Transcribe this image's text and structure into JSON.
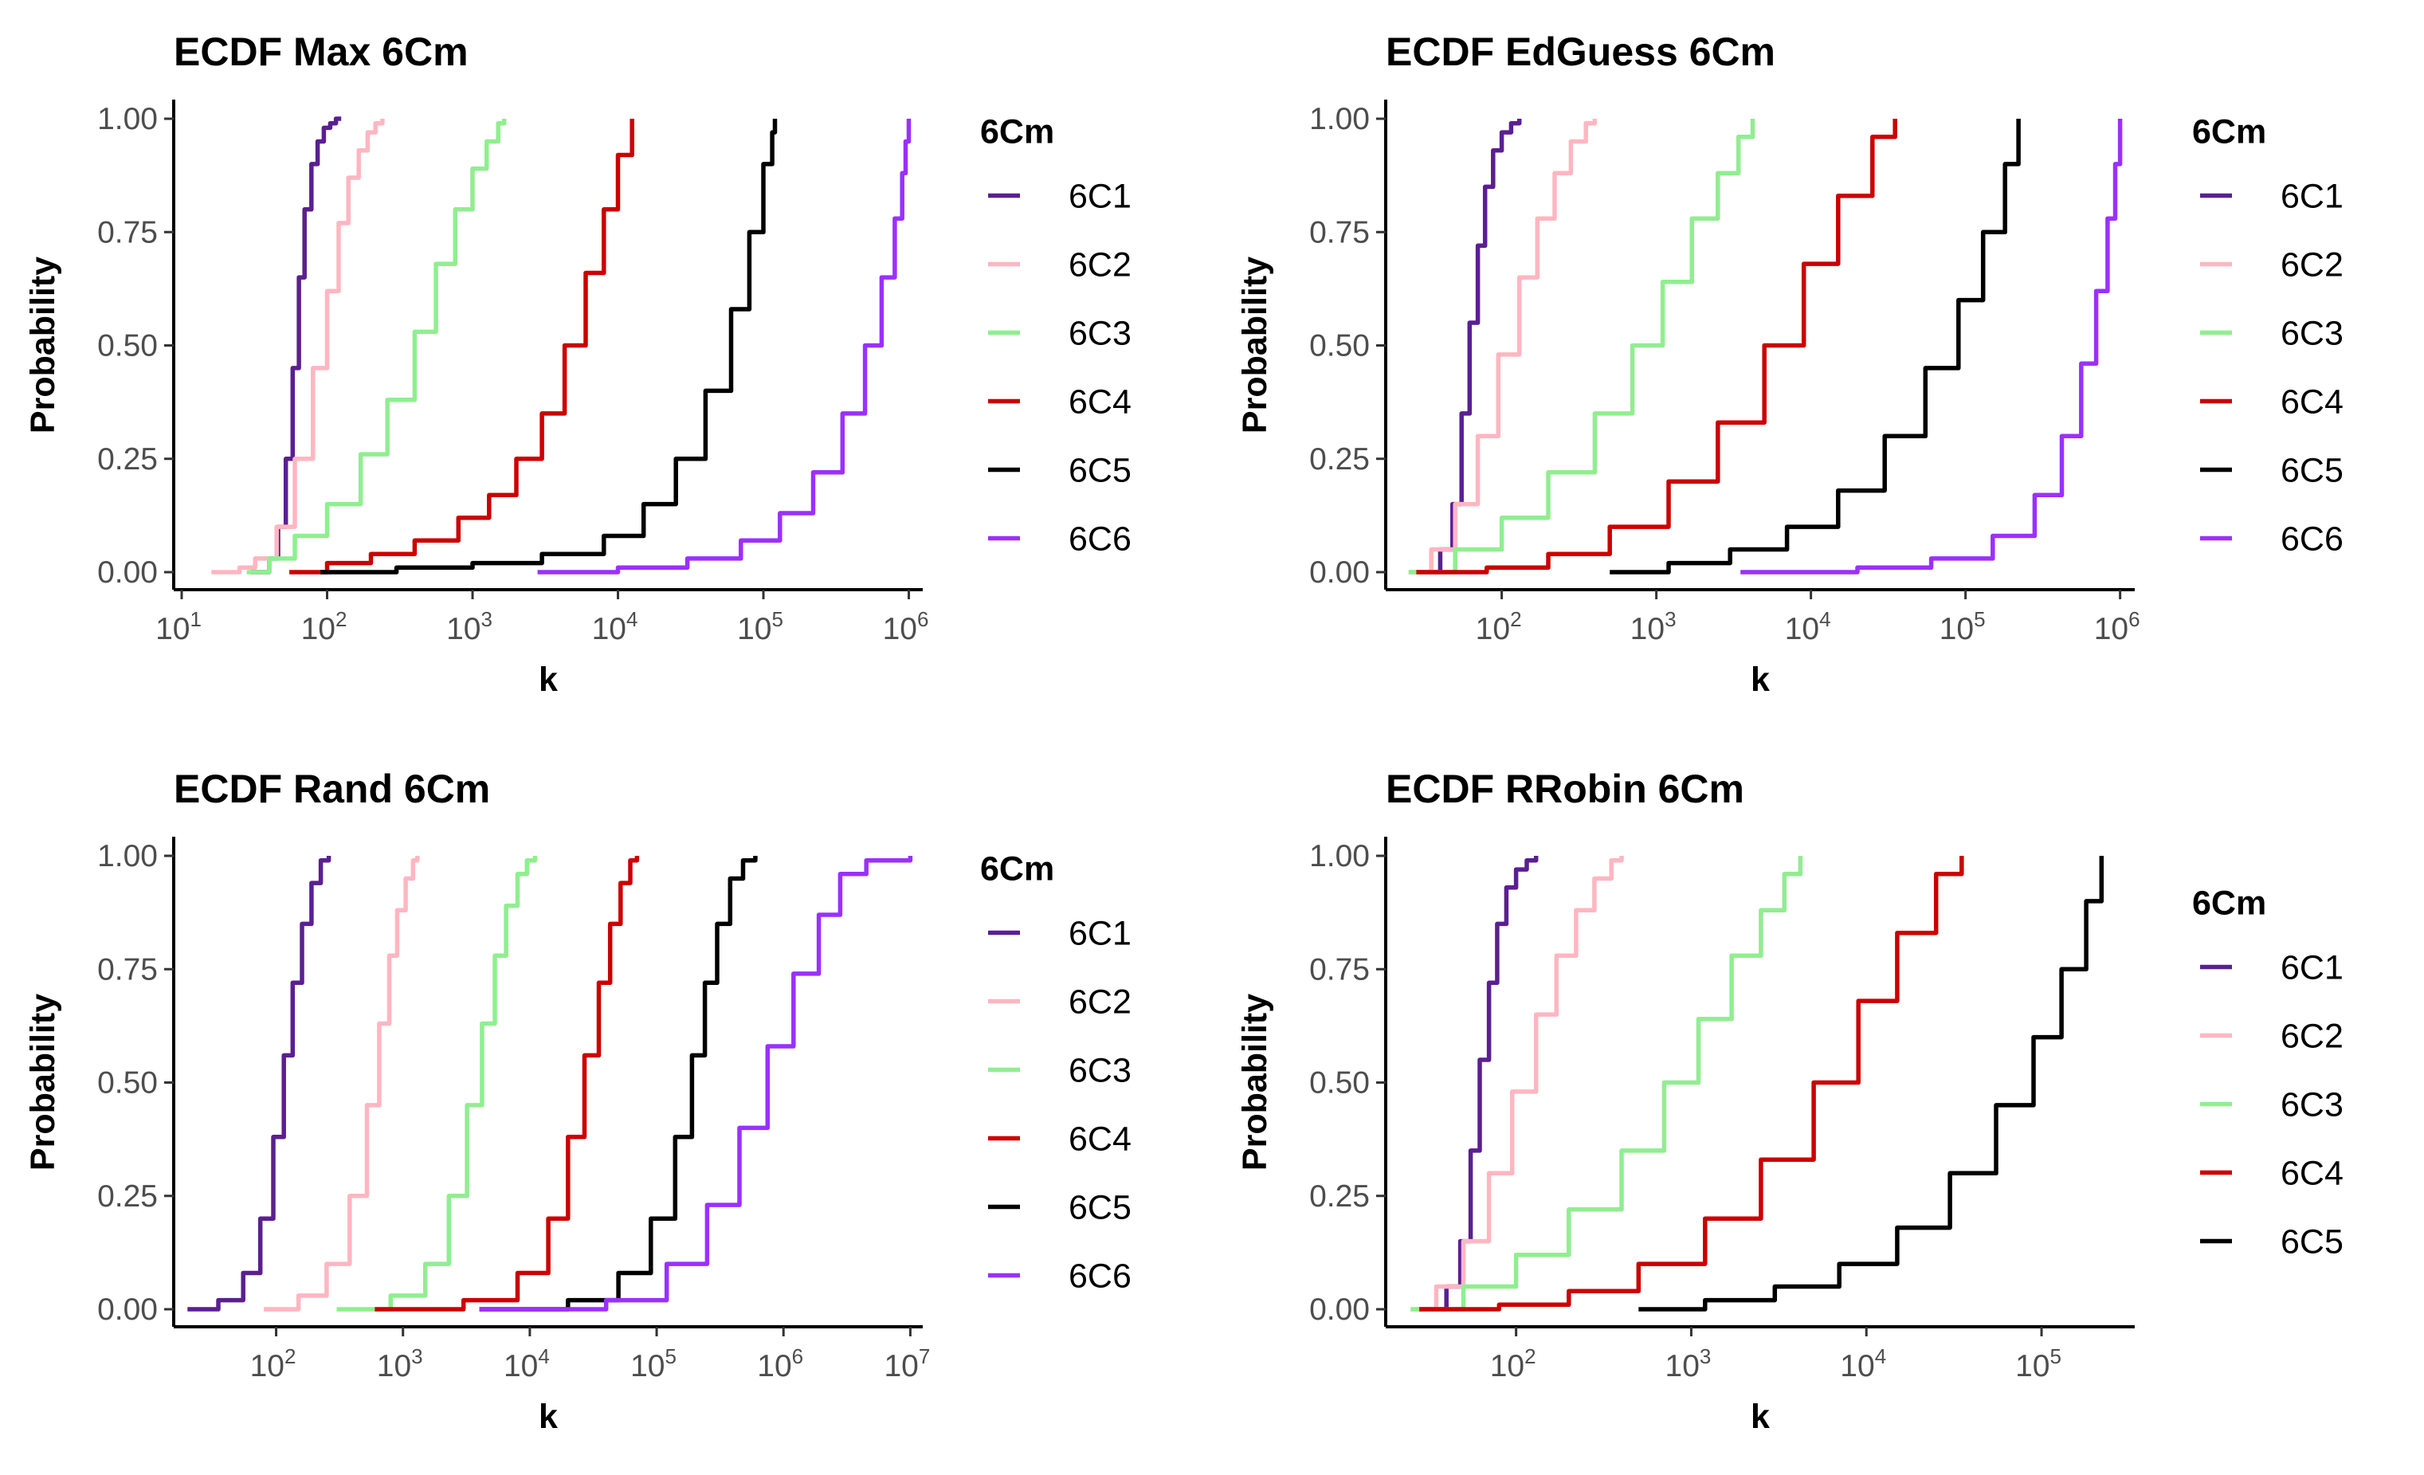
{
  "chart_data": [
    {
      "type": "line",
      "title": "ECDF Max 6Cm",
      "xlabel": "k",
      "ylabel": "Probability",
      "xscale": "log10",
      "xlim": [
        10,
        1200000
      ],
      "ylim": [
        0,
        1
      ],
      "x_ticks": [
        1,
        2,
        3,
        4,
        5,
        6
      ],
      "y_ticks": [
        "0.00",
        "0.25",
        "0.50",
        "0.75",
        "1.00"
      ],
      "legend": {
        "title": "6Cm",
        "position": "right"
      },
      "series": [
        {
          "name": "6C1",
          "color": "#5b1f91",
          "x": [
            30,
            40,
            46,
            52,
            58,
            64,
            70,
            78,
            86,
            95,
            105,
            115,
            125
          ],
          "y": [
            0,
            0.03,
            0.1,
            0.25,
            0.45,
            0.65,
            0.8,
            0.9,
            0.95,
            0.98,
            0.99,
            1.0,
            1.0
          ]
        },
        {
          "name": "6C2",
          "color": "#ffb6c1",
          "x": [
            16,
            25,
            32,
            45,
            60,
            80,
            100,
            120,
            140,
            165,
            190,
            215,
            240
          ],
          "y": [
            0,
            0.01,
            0.03,
            0.1,
            0.25,
            0.45,
            0.62,
            0.77,
            0.87,
            0.93,
            0.97,
            0.99,
            1.0
          ]
        },
        {
          "name": "6C3",
          "color": "#90ee90",
          "x": [
            28,
            40,
            60,
            100,
            170,
            260,
            400,
            560,
            760,
            1000,
            1250,
            1500,
            1650
          ],
          "y": [
            0,
            0.03,
            0.08,
            0.15,
            0.26,
            0.38,
            0.53,
            0.68,
            0.8,
            0.89,
            0.95,
            0.99,
            1.0
          ]
        },
        {
          "name": "6C4",
          "color": "#cc0000",
          "x": [
            55,
            100,
            200,
            400,
            800,
            1300,
            2000,
            3000,
            4300,
            6000,
            8000,
            10000,
            12500
          ],
          "y": [
            0,
            0.02,
            0.04,
            0.07,
            0.12,
            0.17,
            0.25,
            0.35,
            0.5,
            0.66,
            0.8,
            0.92,
            1.0
          ]
        },
        {
          "name": "6C5",
          "color": "#000000",
          "x": [
            90,
            300,
            1000,
            3000,
            8000,
            15000,
            25000,
            40000,
            60000,
            80000,
            100000,
            115000,
            120000
          ],
          "y": [
            0,
            0.01,
            0.02,
            0.04,
            0.08,
            0.15,
            0.25,
            0.4,
            0.58,
            0.75,
            0.9,
            0.97,
            1.0
          ]
        },
        {
          "name": "6C6",
          "color": "#9b30ff",
          "x": [
            2800,
            10000,
            30000,
            70000,
            130000,
            220000,
            350000,
            500000,
            650000,
            800000,
            900000,
            950000,
            1000000
          ],
          "y": [
            0,
            0.01,
            0.03,
            0.07,
            0.13,
            0.22,
            0.35,
            0.5,
            0.65,
            0.78,
            0.88,
            0.95,
            1.0
          ]
        }
      ]
    },
    {
      "type": "line",
      "title": "ECDF EdGuess 6Cm",
      "xlabel": "k",
      "ylabel": "Probability",
      "xscale": "log10",
      "xlim": [
        20,
        1200000
      ],
      "ylim": [
        0,
        1
      ],
      "x_ticks": [
        2,
        3,
        4,
        5,
        6
      ],
      "y_ticks": [
        "0.00",
        "0.25",
        "0.50",
        "0.75",
        "1.00"
      ],
      "legend": {
        "title": "6Cm",
        "position": "right"
      },
      "series": [
        {
          "name": "6C1",
          "color": "#5b1f91",
          "x": [
            28,
            40,
            48,
            55,
            62,
            70,
            78,
            88,
            100,
            115,
            130
          ],
          "y": [
            0,
            0.05,
            0.15,
            0.35,
            0.55,
            0.72,
            0.85,
            0.93,
            0.97,
            0.99,
            1.0
          ]
        },
        {
          "name": "6C2",
          "color": "#ffb6c1",
          "x": [
            25,
            35,
            50,
            70,
            95,
            130,
            170,
            220,
            280,
            350,
            400
          ],
          "y": [
            0,
            0.05,
            0.15,
            0.3,
            0.48,
            0.65,
            0.78,
            0.88,
            0.95,
            0.99,
            1.0
          ]
        },
        {
          "name": "6C3",
          "color": "#90ee90",
          "x": [
            25,
            50,
            100,
            200,
            400,
            700,
            1100,
            1700,
            2500,
            3400,
            4200
          ],
          "y": [
            0,
            0.05,
            0.12,
            0.22,
            0.35,
            0.5,
            0.64,
            0.78,
            0.88,
            0.96,
            1.0
          ]
        },
        {
          "name": "6C4",
          "color": "#cc0000",
          "x": [
            28,
            80,
            200,
            500,
            1200,
            2500,
            5000,
            9000,
            15000,
            25000,
            35000
          ],
          "y": [
            0,
            0.01,
            0.04,
            0.1,
            0.2,
            0.33,
            0.5,
            0.68,
            0.83,
            0.96,
            1.0
          ]
        },
        {
          "name": "6C5",
          "color": "#000000",
          "x": [
            500,
            1200,
            3000,
            7000,
            15000,
            30000,
            55000,
            90000,
            130000,
            180000,
            220000
          ],
          "y": [
            0,
            0.02,
            0.05,
            0.1,
            0.18,
            0.3,
            0.45,
            0.6,
            0.75,
            0.9,
            1.0
          ]
        },
        {
          "name": "6C6",
          "color": "#9b30ff",
          "x": [
            3500,
            20000,
            60000,
            150000,
            280000,
            420000,
            560000,
            700000,
            830000,
            930000,
            1000000
          ],
          "y": [
            0,
            0.01,
            0.03,
            0.08,
            0.17,
            0.3,
            0.46,
            0.62,
            0.78,
            0.9,
            1.0
          ]
        }
      ]
    },
    {
      "type": "line",
      "title": "ECDF Rand 6Cm",
      "xlabel": "k",
      "ylabel": "Probability",
      "xscale": "log10",
      "xlim": [
        18,
        12000000
      ],
      "ylim": [
        0,
        1
      ],
      "x_ticks": [
        2,
        3,
        4,
        5,
        6,
        7
      ],
      "y_ticks": [
        "0.00",
        "0.25",
        "0.50",
        "0.75",
        "1.00"
      ],
      "legend": {
        "title": "6Cm",
        "position": "right"
      },
      "series": [
        {
          "name": "6C1",
          "color": "#5b1f91",
          "x": [
            20,
            35,
            55,
            75,
            95,
            115,
            135,
            160,
            190,
            225,
            260
          ],
          "y": [
            0,
            0.02,
            0.08,
            0.2,
            0.38,
            0.56,
            0.72,
            0.85,
            0.94,
            0.99,
            1.0
          ]
        },
        {
          "name": "6C2",
          "color": "#ffb6c1",
          "x": [
            80,
            150,
            250,
            380,
            520,
            650,
            780,
            900,
            1050,
            1200,
            1300
          ],
          "y": [
            0,
            0.03,
            0.1,
            0.25,
            0.45,
            0.63,
            0.78,
            0.88,
            0.95,
            0.99,
            1.0
          ]
        },
        {
          "name": "6C3",
          "color": "#90ee90",
          "x": [
            300,
            800,
            1500,
            2300,
            3200,
            4200,
            5300,
            6500,
            8000,
            9500,
            11000
          ],
          "y": [
            0,
            0.03,
            0.1,
            0.25,
            0.45,
            0.63,
            0.78,
            0.89,
            0.96,
            0.99,
            1.0
          ]
        },
        {
          "name": "6C4",
          "color": "#cc0000",
          "x": [
            600,
            3000,
            8000,
            14000,
            20000,
            27000,
            35000,
            43000,
            52000,
            62000,
            70000
          ],
          "y": [
            0,
            0.02,
            0.08,
            0.2,
            0.38,
            0.56,
            0.72,
            0.85,
            0.94,
            0.99,
            1.0
          ]
        },
        {
          "name": "6C5",
          "color": "#000000",
          "x": [
            4000,
            20000,
            50000,
            90000,
            140000,
            190000,
            240000,
            300000,
            380000,
            480000,
            600000
          ],
          "y": [
            0,
            0.02,
            0.08,
            0.2,
            0.38,
            0.56,
            0.72,
            0.85,
            0.95,
            0.99,
            1.0
          ]
        },
        {
          "name": "6C6",
          "color": "#9b30ff",
          "x": [
            4000,
            40000,
            120000,
            250000,
            450000,
            750000,
            1200000,
            1900000,
            2800000,
            4500000,
            10000000
          ],
          "y": [
            0,
            0.02,
            0.1,
            0.23,
            0.4,
            0.58,
            0.74,
            0.87,
            0.96,
            0.99,
            1.0
          ]
        }
      ]
    },
    {
      "type": "line",
      "title": "ECDF RRobin 6Cm",
      "xlabel": "k",
      "ylabel": "Probability",
      "xscale": "log10",
      "xlim": [
        20,
        330000
      ],
      "ylim": [
        0,
        1
      ],
      "x_ticks": [
        2,
        3,
        4,
        5
      ],
      "y_ticks": [
        "0.00",
        "0.25",
        "0.50",
        "0.75",
        "1.00"
      ],
      "legend": {
        "title": "6Cm",
        "position": "right"
      },
      "series": [
        {
          "name": "6C1",
          "color": "#5b1f91",
          "x": [
            28,
            40,
            48,
            55,
            62,
            70,
            78,
            88,
            100,
            115,
            130
          ],
          "y": [
            0,
            0.05,
            0.15,
            0.35,
            0.55,
            0.72,
            0.85,
            0.93,
            0.97,
            0.99,
            1.0
          ]
        },
        {
          "name": "6C2",
          "color": "#ffb6c1",
          "x": [
            25,
            35,
            50,
            70,
            95,
            130,
            170,
            220,
            280,
            350,
            400
          ],
          "y": [
            0,
            0.05,
            0.15,
            0.3,
            0.48,
            0.65,
            0.78,
            0.88,
            0.95,
            0.99,
            1.0
          ]
        },
        {
          "name": "6C3",
          "color": "#90ee90",
          "x": [
            25,
            50,
            100,
            200,
            400,
            700,
            1100,
            1700,
            2500,
            3400,
            4200
          ],
          "y": [
            0,
            0.05,
            0.12,
            0.22,
            0.35,
            0.5,
            0.64,
            0.78,
            0.88,
            0.96,
            1.0
          ]
        },
        {
          "name": "6C4",
          "color": "#cc0000",
          "x": [
            28,
            80,
            200,
            500,
            1200,
            2500,
            5000,
            9000,
            15000,
            25000,
            35000
          ],
          "y": [
            0,
            0.01,
            0.04,
            0.1,
            0.2,
            0.33,
            0.5,
            0.68,
            0.83,
            0.96,
            1.0
          ]
        },
        {
          "name": "6C5",
          "color": "#000000",
          "x": [
            500,
            1200,
            3000,
            7000,
            15000,
            30000,
            55000,
            90000,
            130000,
            180000,
            220000
          ],
          "y": [
            0,
            0.02,
            0.05,
            0.1,
            0.18,
            0.3,
            0.45,
            0.6,
            0.75,
            0.9,
            1.0
          ]
        }
      ]
    }
  ]
}
